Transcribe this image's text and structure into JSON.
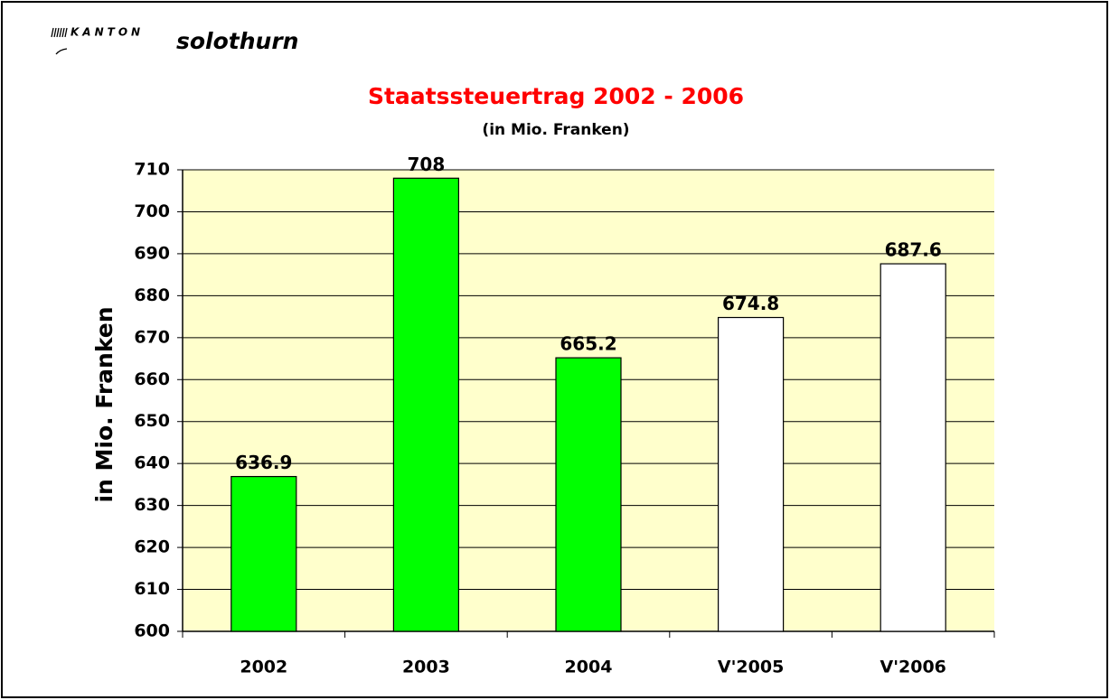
{
  "logo": {
    "canton": "KANTON",
    "name": "solothurn"
  },
  "chart_data": {
    "type": "bar",
    "title": "Staatssteuertrag 2002 - 2006",
    "subtitle": "(in Mio. Franken)",
    "y_label": "in Mio. Franken",
    "categories": [
      "2002",
      "2003",
      "2004",
      "V'2005",
      "V'2006"
    ],
    "values": [
      636.9,
      708,
      665.2,
      674.8,
      687.6
    ],
    "colors": [
      "#00ff00",
      "#00ff00",
      "#00ff00",
      "#ffffff",
      "#ffffff"
    ],
    "ylim": [
      600,
      710
    ],
    "yticks": [
      600,
      610,
      620,
      630,
      640,
      650,
      660,
      670,
      680,
      690,
      700,
      710
    ],
    "grid": true,
    "plot_background": "#ffffcc"
  }
}
